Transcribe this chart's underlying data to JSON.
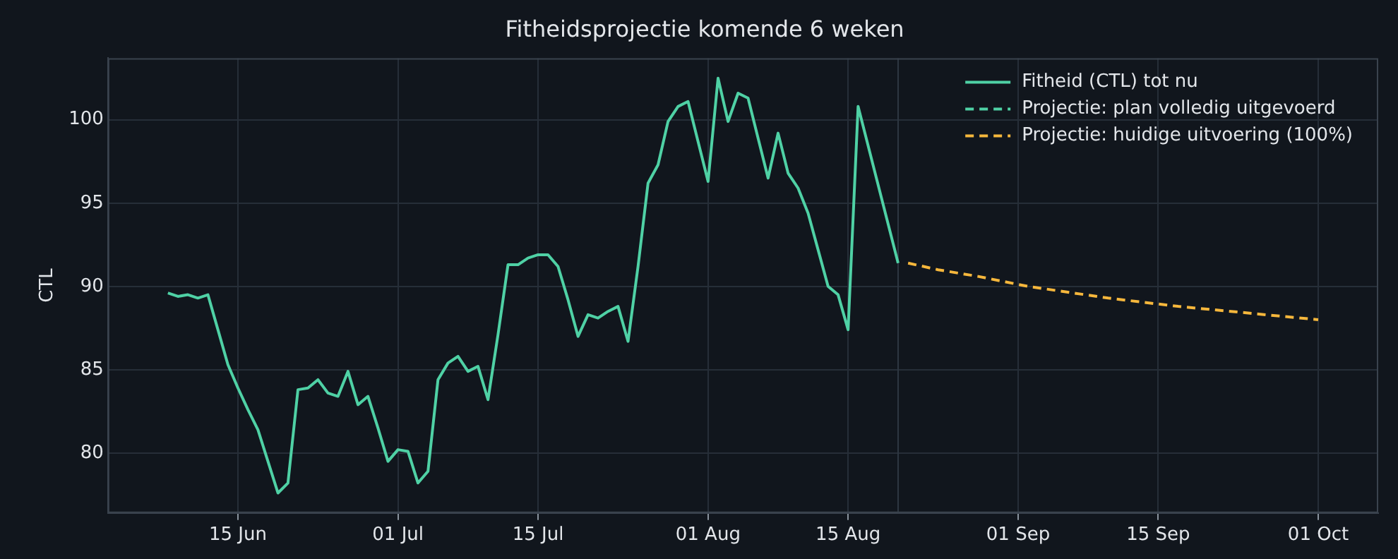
{
  "chart_data": {
    "type": "line",
    "title": "Fitheidsprojectie komende 6 weken",
    "ylabel": "CTL",
    "xlim": [
      "--06-02",
      "--10-07"
    ],
    "xticks": [
      {
        "value": "--06-15",
        "label": "15 Jun"
      },
      {
        "value": "--07-01",
        "label": "01 Jul"
      },
      {
        "value": "--07-15",
        "label": "15 Jul"
      },
      {
        "value": "--08-01",
        "label": "01 Aug"
      },
      {
        "value": "--08-15",
        "label": "15 Aug"
      },
      {
        "value": "--09-01",
        "label": "01 Sep"
      },
      {
        "value": "--09-15",
        "label": "15 Sep"
      },
      {
        "value": "--10-01",
        "label": "01 Oct"
      }
    ],
    "ylim": [
      76.4,
      103.7
    ],
    "yticks": [
      80,
      85,
      90,
      95,
      100
    ],
    "grid": true,
    "legend": "top right",
    "marker": "none",
    "ref_lines": [
      {
        "axis": "x",
        "value": "--08-20",
        "color": "#2e3742"
      }
    ],
    "series": [
      {
        "name": "Fitheid (CTL) tot nu",
        "color": "#4fd1a5",
        "line_style": "solid",
        "x": [
          "--06-08",
          "--06-09",
          "--06-10",
          "--06-11",
          "--06-12",
          "--06-13",
          "--06-14",
          "--06-15",
          "--06-16",
          "--06-17",
          "--06-18",
          "--06-19",
          "--06-20",
          "--06-21",
          "--06-22",
          "--06-23",
          "--06-24",
          "--06-25",
          "--06-26",
          "--06-27",
          "--06-28",
          "--06-29",
          "--06-30",
          "--07-01",
          "--07-02",
          "--07-03",
          "--07-04",
          "--07-05",
          "--07-06",
          "--07-07",
          "--07-08",
          "--07-09",
          "--07-10",
          "--07-11",
          "--07-12",
          "--07-13",
          "--07-14",
          "--07-15",
          "--07-16",
          "--07-17",
          "--07-18",
          "--07-19",
          "--07-20",
          "--07-21",
          "--07-22",
          "--07-23",
          "--07-24",
          "--07-25",
          "--07-26",
          "--07-27",
          "--07-28",
          "--07-29",
          "--07-30",
          "--07-31",
          "--08-01",
          "--08-02",
          "--08-03",
          "--08-04",
          "--08-05",
          "--08-06",
          "--08-07",
          "--08-08",
          "--08-09",
          "--08-10",
          "--08-11",
          "--08-12",
          "--08-13",
          "--08-14",
          "--08-15",
          "--08-16",
          "--08-20"
        ],
        "values": [
          89.6,
          89.4,
          89.5,
          89.3,
          89.5,
          87.4,
          85.3,
          83.9,
          82.6,
          81.4,
          79.5,
          77.6,
          78.2,
          83.8,
          83.9,
          84.4,
          83.6,
          83.4,
          84.9,
          82.9,
          83.4,
          81.5,
          79.5,
          80.2,
          80.1,
          78.2,
          78.9,
          84.4,
          85.4,
          85.8,
          84.9,
          85.2,
          83.2,
          87.1,
          91.3,
          91.3,
          91.7,
          91.9,
          91.9,
          91.2,
          89.2,
          87.0,
          88.3,
          88.1,
          88.5,
          88.8,
          86.7,
          91.2,
          96.2,
          97.3,
          99.9,
          100.8,
          101.1,
          98.7,
          96.3,
          102.5,
          99.9,
          101.6,
          101.3,
          98.9,
          96.5,
          99.2,
          96.8,
          95.9,
          94.4,
          92.2,
          90.0,
          89.5,
          87.4,
          100.8,
          91.4
        ]
      },
      {
        "name": "Projectie: plan volledig uitgevoerd",
        "color": "#4fd1a5",
        "line_style": "dashed"
      },
      {
        "name": "Projectie: huidige uitvoering (100%)",
        "color": "#f6b73c",
        "line_style": "dashed",
        "x": [
          "--08-21",
          "--08-24",
          "--08-28",
          "--09-02",
          "--09-10",
          "--09-17",
          "--09-24",
          "--10-01"
        ],
        "values": [
          91.4,
          91.0,
          90.6,
          90.0,
          89.3,
          88.8,
          88.4,
          88.0
        ]
      }
    ]
  }
}
